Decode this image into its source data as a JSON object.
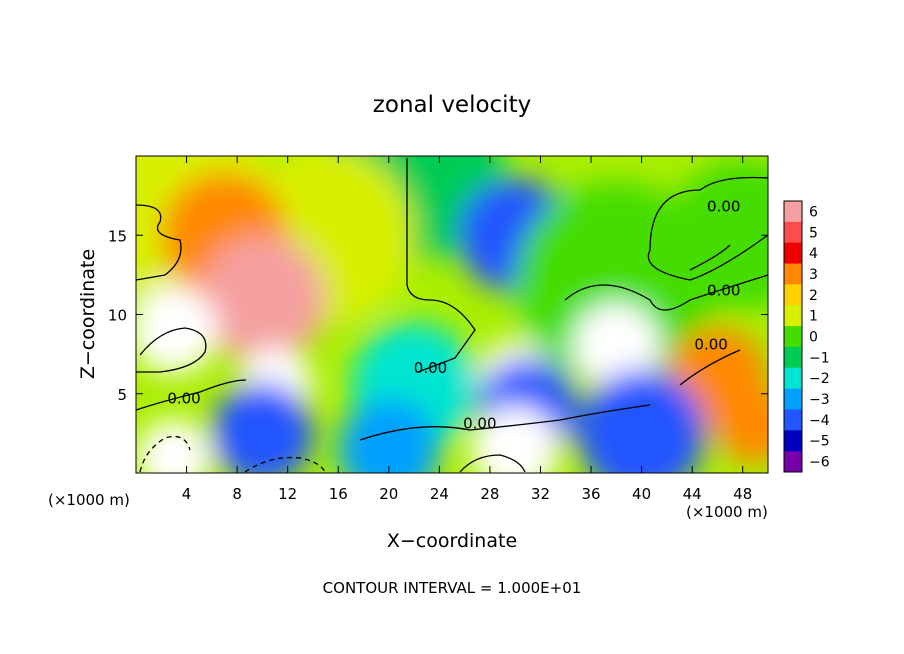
{
  "chart_data": {
    "type": "heatmap",
    "title": "zonal velocity",
    "xlabel": "X−coordinate",
    "ylabel": "Z−coordinate",
    "x_units_left": "(×1000 m)",
    "x_units_right": "(×1000 m)",
    "footer": "CONTOUR INTERVAL = 1.000E+01",
    "xlim": [
      0,
      50
    ],
    "ylim": [
      0,
      20
    ],
    "x_ticks": [
      4,
      8,
      12,
      16,
      20,
      24,
      28,
      32,
      36,
      40,
      44,
      48
    ],
    "x_tick_labels": [
      "4",
      "8",
      "12",
      "16",
      "20",
      "24",
      "28",
      "32",
      "36",
      "40",
      "44",
      "48"
    ],
    "y_ticks": [
      5,
      10,
      15
    ],
    "y_tick_labels": [
      "5",
      "10",
      "15"
    ],
    "colorbar": {
      "levels": [
        6,
        5,
        4,
        3,
        2,
        1,
        0,
        -1,
        -2,
        -3,
        -4,
        -5,
        -6
      ],
      "labels": [
        "6",
        "5",
        "4",
        "3",
        "2",
        "1",
        "0",
        "−1",
        "−2",
        "−3",
        "−4",
        "−5",
        "−6"
      ],
      "colors": [
        "#f5a0a0",
        "#ff4c4c",
        "#ee0000",
        "#ff8800",
        "#ffd000",
        "#d8f000",
        "#44dd00",
        "#00cc55",
        "#00e5d0",
        "#00a0ff",
        "#2255ff",
        "#0000c0",
        "#7700aa"
      ]
    },
    "contour_labels": [
      {
        "text": "0.00",
        "x": 46.5,
        "y": 16.5
      },
      {
        "text": "0.00",
        "x": 46.5,
        "y": 11.2
      },
      {
        "text": "0.00",
        "x": 45.5,
        "y": 7.8
      },
      {
        "text": "0.00",
        "x": 23.3,
        "y": 6.3
      },
      {
        "text": "0.00",
        "x": 3.8,
        "y": 4.4
      },
      {
        "text": "0.00",
        "x": 27.2,
        "y": 2.8
      }
    ],
    "field_blobs": [
      {
        "x": 0,
        "y": 19,
        "v": 1,
        "r": 10
      },
      {
        "x": 22,
        "y": 19,
        "v": -0.8,
        "r": 7
      },
      {
        "x": 30,
        "y": 15,
        "v": -4,
        "r": 4.5
      },
      {
        "x": 38,
        "y": 12,
        "v": 0,
        "r": 8
      },
      {
        "x": 48,
        "y": 15,
        "v": 0,
        "r": 6
      },
      {
        "x": 15,
        "y": 15,
        "v": 1.2,
        "r": 7
      },
      {
        "x": 7,
        "y": 15,
        "v": 3,
        "r": 5
      },
      {
        "x": 10,
        "y": 11,
        "v": 5.5,
        "r": 5
      },
      {
        "x": 3,
        "y": 9,
        "v": 7,
        "r": 3.5
      },
      {
        "x": 11,
        "y": 5.5,
        "v": 7,
        "r": 3
      },
      {
        "x": 22,
        "y": 5.5,
        "v": -2,
        "r": 5
      },
      {
        "x": 30,
        "y": 6,
        "v": 7,
        "r": 3
      },
      {
        "x": 31,
        "y": 4,
        "v": -4,
        "r": 4
      },
      {
        "x": 38,
        "y": 8,
        "v": 7,
        "r": 3.5
      },
      {
        "x": 46,
        "y": 6,
        "v": 3,
        "r": 4
      },
      {
        "x": 10,
        "y": 2.5,
        "v": -4,
        "r": 4
      },
      {
        "x": 3,
        "y": 1,
        "v": 7,
        "r": 3
      },
      {
        "x": 20,
        "y": 1.5,
        "v": -3,
        "r": 4
      },
      {
        "x": 30,
        "y": 1.5,
        "v": 7,
        "r": 3.5
      },
      {
        "x": 40,
        "y": 2.5,
        "v": -4,
        "r": 5
      },
      {
        "x": 49,
        "y": 3,
        "v": 3,
        "r": 3
      }
    ]
  }
}
